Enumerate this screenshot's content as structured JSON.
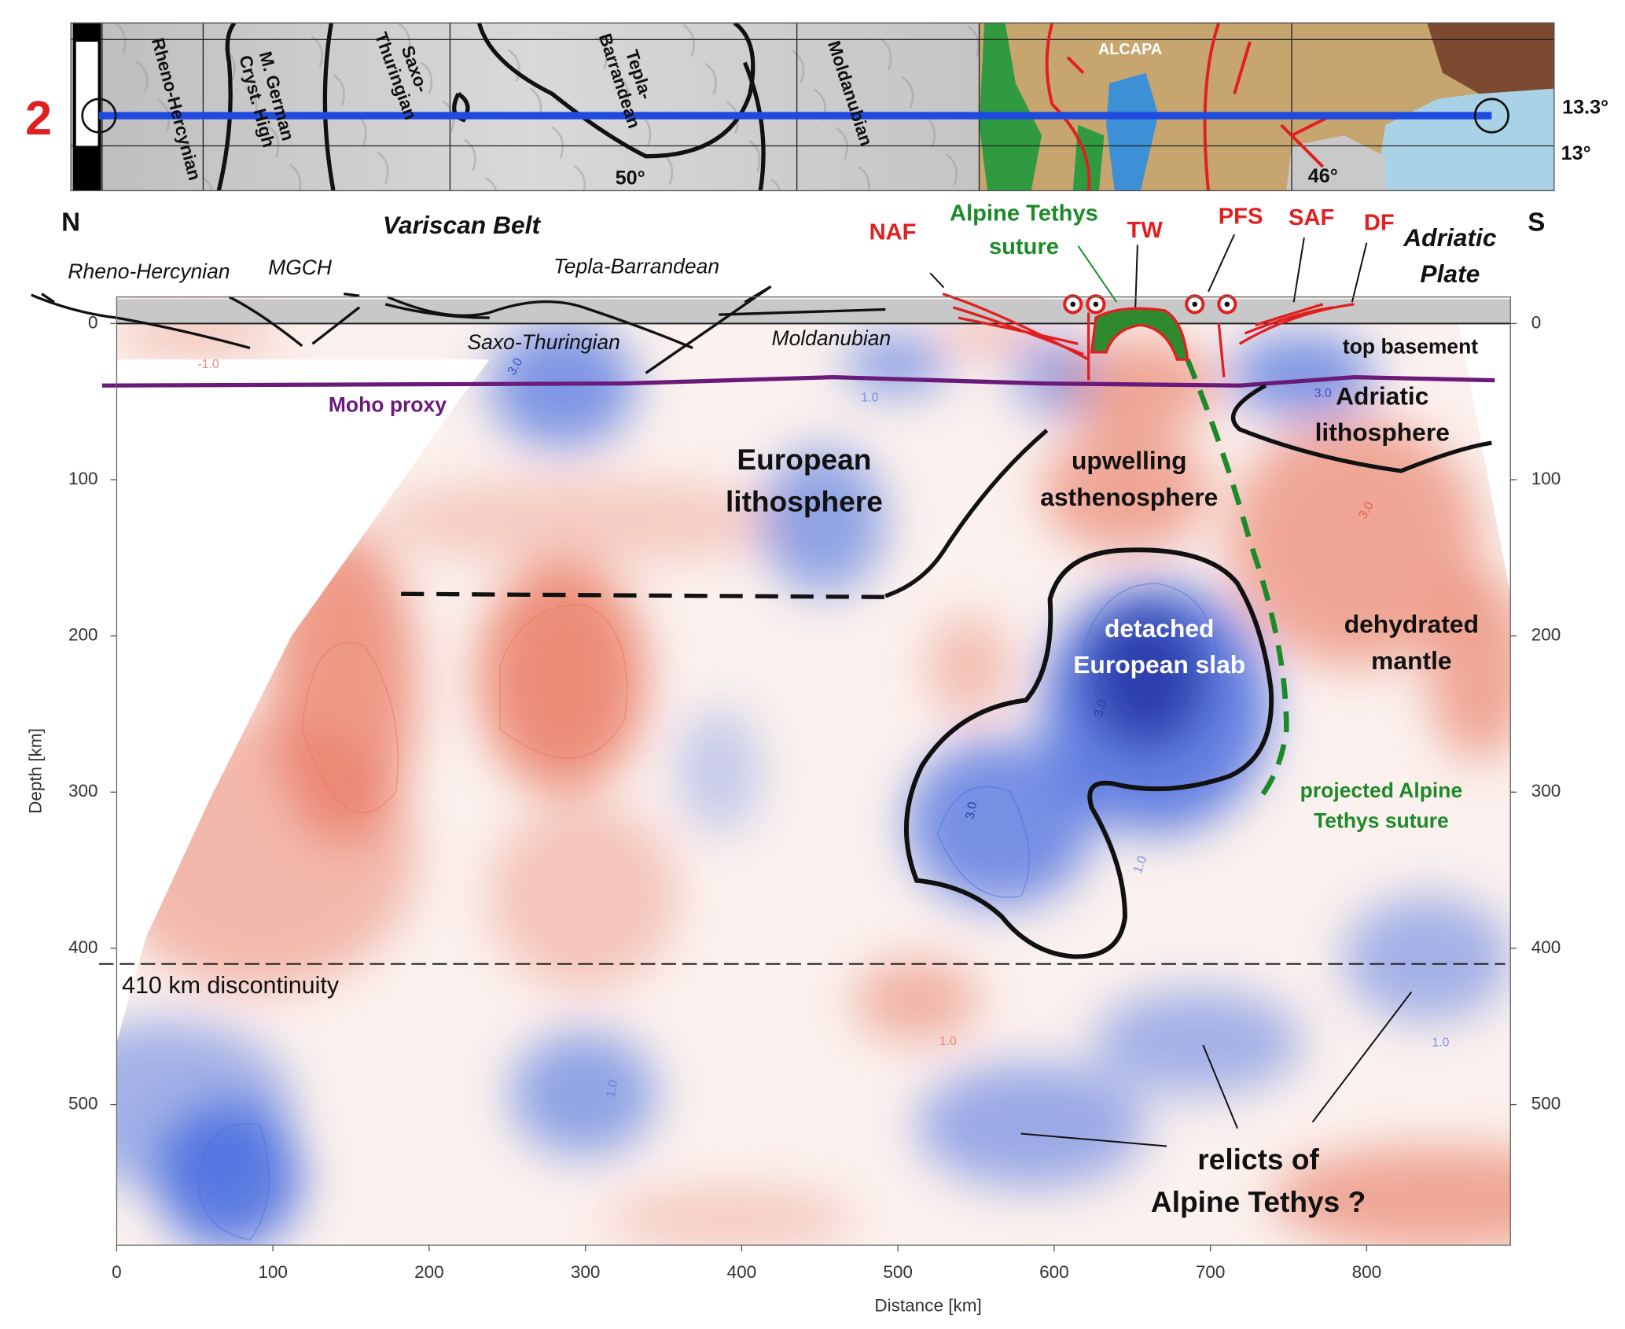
{
  "map": {
    "profile_number": "2",
    "labels": [
      {
        "lines": [
          "Rheno-Hercynian"
        ]
      },
      {
        "lines": [
          "M. German",
          "Cryst. High"
        ]
      },
      {
        "lines": [
          "Saxo-",
          "Thuringian"
        ]
      },
      {
        "lines": [
          "Tepla-",
          "Barrandean"
        ]
      },
      {
        "lines": [
          "Moldanubian"
        ]
      },
      {
        "lines": [
          "ALCAPA"
        ]
      },
      {
        "lines": [
          "50°"
        ]
      },
      {
        "lines": [
          "46°"
        ]
      },
      {
        "lines": [
          "13.3°"
        ]
      },
      {
        "lines": [
          "13°"
        ]
      }
    ]
  },
  "chart_data": {
    "type": "section",
    "xlabel": "Distance [km]",
    "ylabel": "Depth [km]",
    "xlim": [
      0,
      892
    ],
    "ylim": [
      -17,
      590
    ],
    "y_inverted": true,
    "xticks": [
      0,
      100,
      200,
      300,
      400,
      500,
      600,
      700,
      800
    ],
    "yticks": [
      0,
      100,
      200,
      300,
      400,
      500
    ],
    "right_axis_ticks": true,
    "end_labels": [
      "N",
      "S"
    ],
    "discontinuity": {
      "depth": 410,
      "label": "410 km discontinuity"
    },
    "annotations": [
      {
        "lines": [
          "Variscan Belt"
        ]
      },
      {
        "lines": [
          "Rheno-Hercynian"
        ]
      },
      {
        "lines": [
          "MGCH"
        ]
      },
      {
        "lines": [
          "Tepla-Barrandean"
        ]
      },
      {
        "lines": [
          "Saxo-Thuringian"
        ]
      },
      {
        "lines": [
          "Moldanubian"
        ]
      },
      {
        "lines": [
          "NAF"
        ]
      },
      {
        "lines": [
          "Alpine Tethys",
          "suture"
        ]
      },
      {
        "lines": [
          "TW"
        ]
      },
      {
        "lines": [
          "PFS"
        ]
      },
      {
        "lines": [
          "SAF"
        ]
      },
      {
        "lines": [
          "DF"
        ]
      },
      {
        "lines": [
          "Adriatic",
          "Plate"
        ]
      },
      {
        "lines": [
          "top basement"
        ]
      },
      {
        "lines": [
          "Moho proxy"
        ]
      },
      {
        "lines": [
          "Adriatic",
          "lithosphere"
        ]
      },
      {
        "lines": [
          "European",
          "lithosphere"
        ]
      },
      {
        "lines": [
          "upwelling",
          "asthenosphere"
        ]
      },
      {
        "lines": [
          "detached",
          "European slab"
        ]
      },
      {
        "lines": [
          "dehydrated",
          "mantle"
        ]
      },
      {
        "lines": [
          "projected Alpine",
          "Tethys suture"
        ]
      },
      {
        "lines": [
          "relicts of",
          "Alpine Tethys ?"
        ]
      }
    ],
    "contour_labels": [
      {
        "value": -1,
        "label": "-1.0",
        "color": "#e0604a"
      },
      {
        "value": 3,
        "label": "3.0",
        "color": "#3a52c8"
      },
      {
        "value": 1,
        "label": "1.0",
        "color": "#5a72d8"
      },
      {
        "value": 3,
        "label": "3.0",
        "color": "#3a52c8"
      },
      {
        "value": 3,
        "label": "3.0",
        "color": "#2a3aa8"
      },
      {
        "value": 3,
        "label": "3.0",
        "color": "#2a3aa8"
      },
      {
        "value": 1,
        "label": "1.0",
        "color": "#e0604a"
      },
      {
        "value": 1,
        "label": "1.0",
        "color": "#5a72d8"
      },
      {
        "value": 1,
        "label": "1.0",
        "color": "#5a72d8"
      },
      {
        "value": 3,
        "label": "3.0",
        "color": "#e0604a"
      },
      {
        "value": 1,
        "label": "1.0",
        "color": "#5a72d8"
      }
    ]
  }
}
